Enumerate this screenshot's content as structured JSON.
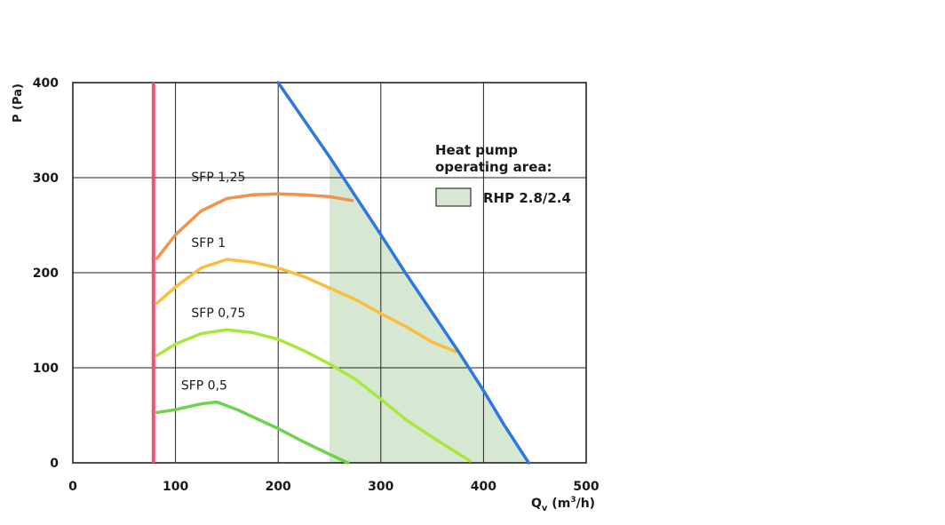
{
  "chart_data": {
    "type": "line",
    "ylabel": "P (Pa)",
    "xlabel_main": "Q",
    "xlabel_sub": "v",
    "xlabel_unit_pre": " (m",
    "xlabel_unit_sup": "3",
    "xlabel_unit_post": "/h)",
    "xlim": [
      0,
      500
    ],
    "ylim": [
      0,
      400
    ],
    "x_ticks": [
      0,
      100,
      200,
      300,
      400,
      500
    ],
    "y_ticks": [
      0,
      100,
      200,
      300,
      400
    ],
    "grid": true,
    "legend_title_line1": "Heat pump",
    "legend_title_line2": "operating area:",
    "legend_item": "RHP 2.8/2.4",
    "series": [
      {
        "name": "SFP 1,25",
        "color": "#f4914a",
        "points": [
          [
            82,
            215
          ],
          [
            100,
            240
          ],
          [
            125,
            265
          ],
          [
            150,
            278
          ],
          [
            175,
            282
          ],
          [
            200,
            283
          ],
          [
            225,
            282
          ],
          [
            250,
            280
          ],
          [
            272,
            276
          ]
        ]
      },
      {
        "name": "SFP 1",
        "color": "#fbbd3c",
        "points": [
          [
            82,
            168
          ],
          [
            100,
            185
          ],
          [
            125,
            205
          ],
          [
            150,
            214
          ],
          [
            175,
            211
          ],
          [
            200,
            205
          ],
          [
            225,
            196
          ],
          [
            250,
            184
          ],
          [
            275,
            172
          ],
          [
            300,
            157
          ],
          [
            325,
            143
          ],
          [
            350,
            127
          ],
          [
            373,
            117
          ]
        ]
      },
      {
        "name": "SFP 0,75",
        "color": "#a8e83c",
        "points": [
          [
            82,
            113
          ],
          [
            100,
            125
          ],
          [
            125,
            136
          ],
          [
            150,
            140
          ],
          [
            175,
            137
          ],
          [
            200,
            130
          ],
          [
            225,
            118
          ],
          [
            250,
            104
          ],
          [
            275,
            88
          ],
          [
            300,
            67
          ],
          [
            325,
            45
          ],
          [
            350,
            27
          ],
          [
            375,
            10
          ],
          [
            387,
            2
          ]
        ]
      },
      {
        "name": "SFP 0,5",
        "color": "#6ed34a",
        "points": [
          [
            82,
            53
          ],
          [
            100,
            56
          ],
          [
            125,
            62
          ],
          [
            140,
            64
          ],
          [
            160,
            56
          ],
          [
            180,
            46
          ],
          [
            200,
            36
          ],
          [
            225,
            22
          ],
          [
            250,
            9
          ],
          [
            268,
            0
          ]
        ]
      }
    ],
    "limit_line": {
      "color": "#2f76e3",
      "points": [
        [
          200,
          400
        ],
        [
          250,
          322
        ],
        [
          300,
          240
        ],
        [
          325,
          198
        ],
        [
          350,
          158
        ],
        [
          375,
          118
        ],
        [
          400,
          76
        ],
        [
          420,
          40
        ],
        [
          444,
          0
        ]
      ]
    },
    "vertical_line": {
      "color": "#f0527a",
      "x": 82
    },
    "operating_area": {
      "color": "#d6e8d2",
      "polygon": [
        [
          250,
          0
        ],
        [
          250,
          322
        ],
        [
          300,
          240
        ],
        [
          325,
          198
        ],
        [
          350,
          158
        ],
        [
          375,
          118
        ],
        [
          400,
          76
        ],
        [
          420,
          40
        ],
        [
          444,
          0
        ]
      ]
    }
  }
}
